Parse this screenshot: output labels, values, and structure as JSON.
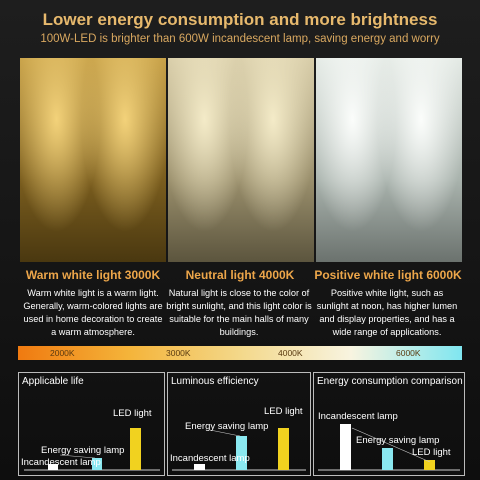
{
  "header": {
    "title": "Lower energy consumption and more brightness",
    "subtitle": "100W-LED is brighter than 600W incandescent lamp, saving energy and worry"
  },
  "panels": [
    {
      "heading": "Warm white light 3000K",
      "description": "Warm white light is a warm light. Generally, warm-colored lights are used in home decoration to create a warm atmosphere."
    },
    {
      "heading": "Neutral light 4000K",
      "description": "Natural light is close to the color of bright sunlight, and this light color is suitable for the main halls of many buildings."
    },
    {
      "heading": "Positive white light 6000K",
      "description": "Positive white light, such as sunlight at noon, has higher lumen and display properties, and has a wide range of applications."
    }
  ],
  "scale": {
    "labels": [
      "2000K",
      "3000K",
      "4000K",
      "6000K"
    ]
  },
  "charts": [
    {
      "title": "Applicable life",
      "labels": [
        "LED light",
        "Energy saving lamp",
        "Incandescent lamp"
      ]
    },
    {
      "title": "Luminous efficiency",
      "labels": [
        "LED light",
        "Energy saving lamp",
        "Incandescent lamp"
      ]
    },
    {
      "title": "Energy consumption comparison",
      "labels": [
        "Incandescent lamp",
        "Energy saving lamp",
        "LED light"
      ]
    }
  ]
}
